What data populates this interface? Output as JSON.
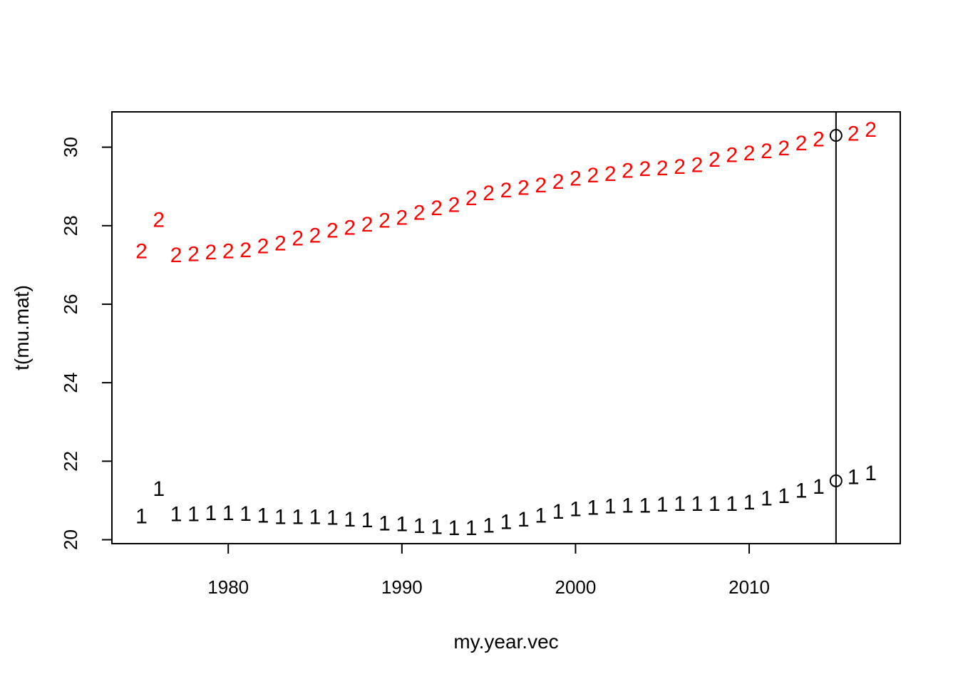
{
  "chart_data": {
    "type": "scatter",
    "title": "",
    "xlabel": "my.year.vec",
    "ylabel": "t(mu.mat)",
    "xlim": [
      1973.3,
      2018.7
    ],
    "ylim": [
      19.9,
      30.9
    ],
    "x_ticks": [
      1980,
      1990,
      2000,
      2010
    ],
    "y_ticks": [
      20,
      22,
      24,
      26,
      28,
      30
    ],
    "x_tick_labels": [
      "1980",
      "1990",
      "2000",
      "2010"
    ],
    "y_tick_labels": [
      "20",
      "22",
      "24",
      "26",
      "28",
      "30"
    ],
    "grid": false,
    "legend": "none",
    "vline": {
      "x": 2015,
      "color": "#000000"
    },
    "highlight_points": [
      {
        "x": 2015,
        "y": 21.5
      },
      {
        "x": 2015,
        "y": 30.3
      }
    ],
    "x": [
      1975,
      1976,
      1977,
      1978,
      1979,
      1980,
      1981,
      1982,
      1983,
      1984,
      1985,
      1986,
      1987,
      1988,
      1989,
      1990,
      1991,
      1992,
      1993,
      1994,
      1995,
      1996,
      1997,
      1998,
      1999,
      2000,
      2001,
      2002,
      2003,
      2004,
      2005,
      2006,
      2007,
      2008,
      2009,
      2010,
      2011,
      2012,
      2013,
      2014,
      2015,
      2016,
      2017
    ],
    "series": [
      {
        "marker": "1",
        "color": "#000000",
        "values": [
          20.6,
          21.3,
          20.65,
          20.65,
          20.68,
          20.68,
          20.66,
          20.62,
          20.58,
          20.58,
          20.58,
          20.56,
          20.52,
          20.5,
          20.42,
          20.4,
          20.35,
          20.33,
          20.3,
          20.3,
          20.36,
          20.45,
          20.52,
          20.62,
          20.72,
          20.78,
          20.82,
          20.85,
          20.87,
          20.87,
          20.9,
          20.92,
          20.92,
          20.92,
          20.92,
          20.95,
          21.05,
          21.12,
          21.25,
          21.35,
          null,
          21.6,
          21.7
        ]
      },
      {
        "marker": "2",
        "color": "#ff0000",
        "values": [
          27.35,
          28.15,
          27.25,
          27.28,
          27.32,
          27.35,
          27.38,
          27.48,
          27.55,
          27.68,
          27.75,
          27.88,
          27.95,
          28.03,
          28.13,
          28.2,
          28.33,
          28.45,
          28.53,
          28.7,
          28.83,
          28.9,
          28.97,
          29.03,
          29.12,
          29.2,
          29.28,
          29.32,
          29.4,
          29.45,
          29.47,
          29.5,
          29.55,
          29.68,
          29.8,
          29.85,
          29.9,
          29.97,
          30.1,
          30.2,
          null,
          30.35,
          30.45
        ]
      }
    ]
  }
}
